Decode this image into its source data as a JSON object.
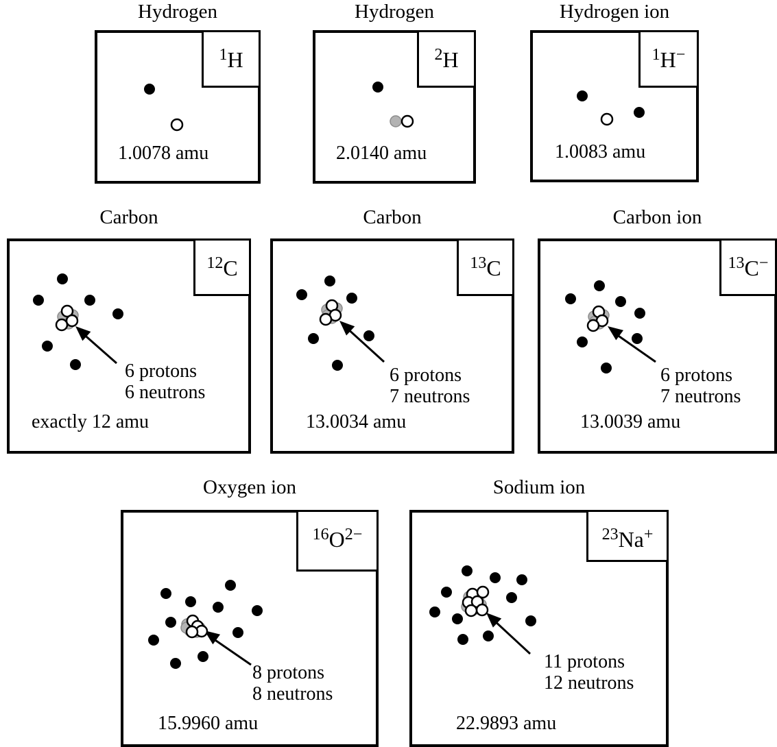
{
  "panels": [
    {
      "title": "Hydrogen",
      "mass_number": "1",
      "element": "H",
      "charge": "",
      "mass": "1.0078 amu",
      "protons_label": "",
      "neutrons_label": "",
      "electrons": [
        [
          76,
          82
        ]
      ],
      "protons": [
        [
          116,
          134
        ]
      ],
      "neutrons": []
    },
    {
      "title": "Hydrogen",
      "mass_number": "2",
      "element": "H",
      "charge": "",
      "mass": "2.0140 amu",
      "protons_label": "",
      "neutrons_label": "",
      "electrons": [
        [
          91,
          79
        ]
      ],
      "protons": [
        [
          134,
          129
        ]
      ],
      "neutrons": [
        [
          117,
          129
        ]
      ]
    },
    {
      "title": "Hydrogen ion",
      "mass_number": "1",
      "element": "H",
      "charge": "−",
      "mass": "1.0083 amu",
      "protons_label": "",
      "neutrons_label": "",
      "electrons": [
        [
          72,
          92
        ],
        [
          155,
          116
        ]
      ],
      "protons": [
        [
          108,
          126
        ]
      ],
      "neutrons": []
    },
    {
      "title": "Carbon",
      "mass_number": "12",
      "element": "C",
      "charge": "",
      "mass": "exactly 12 amu",
      "protons_label": "6 protons",
      "neutrons_label": "6 neutrons",
      "electrons": [
        [
          77,
          55
        ],
        [
          42,
          86
        ],
        [
          117,
          86
        ],
        [
          158,
          106
        ],
        [
          55,
          153
        ],
        [
          96,
          180
        ]
      ],
      "protons": [
        [
          84,
          102
        ],
        [
          91,
          116
        ],
        [
          76,
          122
        ]
      ],
      "neutrons": [
        [
          78,
          110
        ],
        [
          92,
          108
        ],
        [
          86,
          120
        ]
      ]
    },
    {
      "title": "Carbon",
      "mass_number": "13",
      "element": "C",
      "charge": "",
      "mass": "13.0034 amu",
      "protons_label": "6 protons",
      "neutrons_label": "7 neutrons",
      "electrons": [
        [
          83,
          58
        ],
        [
          42,
          78
        ],
        [
          115,
          83
        ],
        [
          140,
          138
        ],
        [
          59,
          142
        ],
        [
          94,
          181
        ]
      ],
      "protons": [
        [
          86,
          94
        ],
        [
          91,
          108
        ],
        [
          77,
          114
        ]
      ],
      "neutrons": [
        [
          79,
          100
        ],
        [
          93,
          98
        ],
        [
          86,
          112
        ],
        [
          80,
          108
        ]
      ]
    },
    {
      "title": "Carbon ion",
      "mass_number": "13",
      "element": "C",
      "charge": "−",
      "mass": "13.0039 amu",
      "protons_label": "6 protons",
      "neutrons_label": "7 neutrons",
      "electrons": [
        [
          86,
          65
        ],
        [
          44,
          84
        ],
        [
          117,
          88
        ],
        [
          145,
          105
        ],
        [
          141,
          142
        ],
        [
          61,
          147
        ],
        [
          96,
          185
        ]
      ],
      "protons": [
        [
          85,
          103
        ],
        [
          90,
          116
        ],
        [
          77,
          123
        ]
      ],
      "neutrons": [
        [
          78,
          110
        ],
        [
          92,
          108
        ],
        [
          86,
          120
        ],
        [
          80,
          117
        ]
      ]
    },
    {
      "title": "Oxygen ion",
      "mass_number": "16",
      "element": "O",
      "charge": "2−",
      "mass": "15.9960 amu",
      "protons_label": "8 protons",
      "neutrons_label": "8 neutrons",
      "electrons": [
        [
          62,
          118
        ],
        [
          98,
          130
        ],
        [
          156,
          106
        ],
        [
          138,
          138
        ],
        [
          195,
          143
        ],
        [
          69,
          160
        ],
        [
          167,
          175
        ],
        [
          44,
          186
        ],
        [
          116,
          210
        ],
        [
          76,
          220
        ]
      ],
      "protons": [
        [
          101,
          158
        ],
        [
          108,
          166
        ],
        [
          114,
          173
        ],
        [
          100,
          174
        ]
      ],
      "neutrons": [
        [
          93,
          163
        ],
        [
          104,
          165
        ],
        [
          97,
          172
        ],
        [
          111,
          168
        ],
        [
          92,
          168
        ],
        [
          107,
          174
        ]
      ]
    },
    {
      "title": "Sodium ion",
      "mass_number": "23",
      "element": "Na",
      "charge": "+",
      "mass": "22.9893 amu",
      "protons_label": "11 protons",
      "neutrons_label": "12 neutrons",
      "electrons": [
        [
          80,
          85
        ],
        [
          121,
          95
        ],
        [
          160,
          98
        ],
        [
          50,
          116
        ],
        [
          145,
          124
        ],
        [
          33,
          145
        ],
        [
          66,
          155
        ],
        [
          173,
          158
        ],
        [
          74,
          185
        ],
        [
          111,
          180
        ]
      ],
      "protons": [
        [
          88,
          119
        ],
        [
          103,
          116
        ],
        [
          82,
          131
        ],
        [
          95,
          130
        ],
        [
          102,
          142
        ],
        [
          86,
          143
        ]
      ],
      "neutrons": [
        [
          83,
          123
        ],
        [
          97,
          122
        ],
        [
          90,
          126
        ],
        [
          100,
          134
        ],
        [
          80,
          137
        ],
        [
          94,
          140
        ],
        [
          88,
          134
        ]
      ]
    }
  ]
}
